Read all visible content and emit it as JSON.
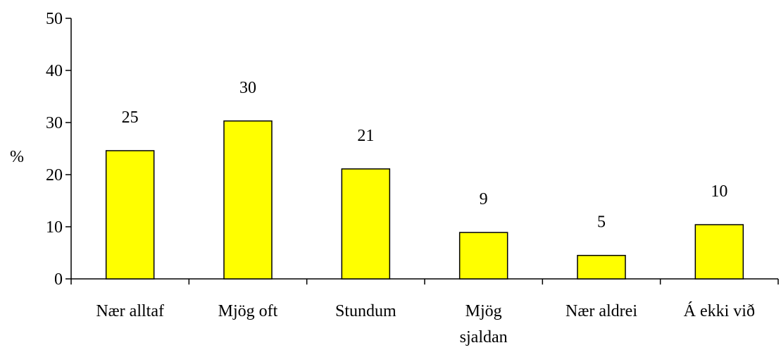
{
  "chart_data": {
    "type": "bar",
    "categories": [
      [
        "Nær alltaf"
      ],
      [
        "Mjög oft"
      ],
      [
        "Stundum"
      ],
      [
        "Mjög",
        "sjaldan"
      ],
      [
        "Nær aldrei"
      ],
      [
        "Á ekki við"
      ]
    ],
    "values": [
      24.6,
      30.3,
      21.1,
      8.9,
      4.5,
      10.4
    ],
    "data_labels": [
      "25",
      "30",
      "21",
      "9",
      "5",
      "10"
    ],
    "ylabel": "%",
    "ylim": [
      0,
      50
    ],
    "yticks": [
      "0",
      "10",
      "20",
      "30",
      "40",
      "50"
    ],
    "grid": false,
    "legend": "none",
    "bar_color": "#ffff00",
    "bar_edge_color": "#000000"
  }
}
